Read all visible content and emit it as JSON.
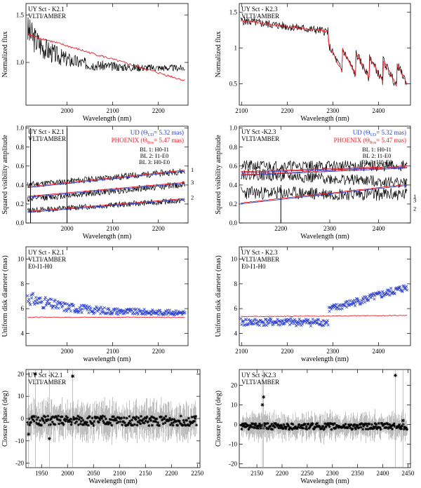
{
  "chart_data": [
    {
      "id": "flux-k21",
      "type": "line",
      "title_lines": [
        "UY Sct - K2.1",
        "VLTI/AMBER"
      ],
      "xlabel": "Wavelength (nm)",
      "ylabel": "Normalized flux",
      "xlim": [
        1910,
        2265
      ],
      "ylim": [
        0.55,
        1.62
      ],
      "xticks": [
        2000,
        2100,
        2200
      ],
      "yticks": [
        1.0,
        1.5
      ],
      "legend": [],
      "series": [
        {
          "name": "Observed",
          "color": "#000000",
          "gen": {
            "kind": "decay",
            "a": 0.94,
            "b": 0.42,
            "tau": 60,
            "noise": 0.09,
            "decay": 90,
            "n": 330,
            "seed": 3
          }
        },
        {
          "name": "Model",
          "color": "#e8202a",
          "gen": {
            "kind": "linear",
            "y0": 1.3,
            "y1": 0.8,
            "noise": 0.012,
            "n": 170,
            "seed": 8
          }
        }
      ]
    },
    {
      "id": "flux-k23",
      "type": "line",
      "title_lines": [
        "UY Sct - K2.3",
        "VLTI/AMBER"
      ],
      "xlabel": "Wavelength (nm)",
      "ylabel": "Normalized flux",
      "xlim": [
        2095,
        2470
      ],
      "ylim": [
        0.2,
        1.62
      ],
      "xticks": [
        2100,
        2200,
        2300,
        2400
      ],
      "yticks": [
        0.5,
        1.0,
        1.5
      ],
      "legend": [],
      "series": [
        {
          "name": "Observed",
          "color": "#000000",
          "gen": {
            "kind": "coband",
            "noise": 0.06,
            "n": 320,
            "seed": 5
          }
        },
        {
          "name": "Model",
          "color": "#e8202a",
          "gen": {
            "kind": "coband",
            "noise": 0.02,
            "n": 220,
            "seed": 9
          }
        }
      ]
    },
    {
      "id": "vis-k21",
      "type": "line",
      "title_lines": [
        "UY Sct - K2.1",
        "VLTI/AMBER"
      ],
      "xlabel": "Wavelength (nm)",
      "ylabel": "Squared visibility amplitude",
      "xlim": [
        1910,
        2265
      ],
      "ylim": [
        0,
        1.02
      ],
      "xticks": [
        2000,
        2100,
        2200
      ],
      "yticks": [
        0.0,
        0.2,
        0.4,
        0.6,
        0.8,
        1.0
      ],
      "legend": [
        {
          "text": "UD (Θ",
          "sub": "UD",
          "tail": "= 5.32 mas)",
          "color": "#2b3fd0"
        },
        {
          "text": "PHOENIX (Θ",
          "sub": "Ros",
          "tail": "= 5.47 mas)",
          "color": "#e8202a"
        }
      ],
      "baselines": [
        "BL 1: H0-I1",
        "BL 2: I1-E0",
        "BL 3: H0-E0"
      ],
      "curve_labels": [
        {
          "text": "1",
          "y": 0.56
        },
        {
          "text": "3",
          "y": 0.43
        },
        {
          "text": "2",
          "y": 0.27
        }
      ],
      "series": [
        {
          "name": "BL1 obs",
          "color": "#000000",
          "gen": {
            "kind": "linear",
            "y0": 0.4,
            "y1": 0.55,
            "noise": 0.035,
            "n": 300,
            "seed": 11
          }
        },
        {
          "name": "BL3 obs",
          "color": "#000000",
          "gen": {
            "kind": "linear",
            "y0": 0.25,
            "y1": 0.41,
            "noise": 0.035,
            "n": 300,
            "seed": 12
          }
        },
        {
          "name": "BL2 obs",
          "color": "#000000",
          "gen": {
            "kind": "linear",
            "y0": 0.13,
            "y1": 0.24,
            "noise": 0.03,
            "n": 300,
            "seed": 13
          }
        },
        {
          "name": "BL1 UD",
          "color": "#2b3fd0",
          "gen": {
            "kind": "linear",
            "y0": 0.37,
            "y1": 0.55,
            "noise": 0,
            "n": 2,
            "seed": 1
          }
        },
        {
          "name": "BL1 PHX",
          "color": "#e8202a",
          "gen": {
            "kind": "linear",
            "y0": 0.38,
            "y1": 0.56,
            "noise": 0,
            "n": 2,
            "seed": 1
          }
        },
        {
          "name": "BL3 UD",
          "color": "#2b3fd0",
          "gen": {
            "kind": "linear",
            "y0": 0.27,
            "y1": 0.42,
            "noise": 0,
            "n": 2,
            "seed": 1
          }
        },
        {
          "name": "BL3 PHX",
          "color": "#e8202a",
          "gen": {
            "kind": "linear",
            "y0": 0.28,
            "y1": 0.43,
            "noise": 0,
            "n": 2,
            "seed": 1
          }
        },
        {
          "name": "BL2 UD",
          "color": "#2b3fd0",
          "gen": {
            "kind": "linear",
            "y0": 0.11,
            "y1": 0.25,
            "noise": 0,
            "n": 2,
            "seed": 1
          }
        },
        {
          "name": "BL2 PHX",
          "color": "#e8202a",
          "gen": {
            "kind": "linear",
            "y0": 0.12,
            "y1": 0.26,
            "noise": 0,
            "n": 2,
            "seed": 1
          }
        }
      ],
      "spikes": [
        {
          "x": 1920,
          "y0": 0.0,
          "y1": 1.0
        },
        {
          "x": 2000,
          "y0": 0.0,
          "y1": 1.0
        }
      ]
    },
    {
      "id": "vis-k23",
      "type": "line",
      "title_lines": [
        "UY Sct -K2.3",
        "VLTI/AMBER"
      ],
      "xlabel": "Wavelength (nm)",
      "ylabel": "Squared visibility amplitude",
      "xlim": [
        2115,
        2465
      ],
      "ylim": [
        0,
        1.02
      ],
      "xticks": [
        2200,
        2300,
        2400
      ],
      "yticks": [
        0.0,
        0.2,
        0.4,
        0.6,
        0.8,
        1.0
      ],
      "legend": [
        {
          "text": "UD (Θ",
          "sub": "UD",
          "tail": "= 5.32 mas)",
          "color": "#2b3fd0"
        },
        {
          "text": "PHOENIX (Θ",
          "sub": "Ros",
          "tail": "= 5.47 mas)",
          "color": "#e8202a"
        }
      ],
      "baselines": [
        "BL 1: H0-I1",
        "BL 2: I1-E0",
        "BL 3: H0-E0"
      ],
      "curve_labels": [
        {
          "text": "1",
          "y": 0.28
        },
        {
          "text": "3",
          "y": 0.24
        },
        {
          "text": "2",
          "y": 0.15
        }
      ],
      "series": [
        {
          "name": "BL1 obs",
          "color": "#000000",
          "gen": {
            "kind": "linear",
            "y0": 0.6,
            "y1": 0.6,
            "noise": 0.06,
            "n": 300,
            "seed": 21
          }
        },
        {
          "name": "BL3 obs",
          "color": "#000000",
          "gen": {
            "kind": "linear",
            "y0": 0.52,
            "y1": 0.42,
            "noise": 0.06,
            "n": 300,
            "seed": 22
          }
        },
        {
          "name": "BL2 obs",
          "color": "#000000",
          "gen": {
            "kind": "linear",
            "y0": 0.32,
            "y1": 0.3,
            "noise": 0.07,
            "n": 300,
            "seed": 23
          }
        },
        {
          "name": "BL1 UD",
          "color": "#2b3fd0",
          "gen": {
            "kind": "linear",
            "y0": 0.53,
            "y1": 0.59,
            "noise": 0,
            "n": 2,
            "seed": 1
          }
        },
        {
          "name": "BL1 PHX",
          "color": "#e8202a",
          "gen": {
            "kind": "linear",
            "y0": 0.54,
            "y1": 0.6,
            "noise": 0.005,
            "n": 120,
            "seed": 24
          }
        },
        {
          "name": "BL3 UD",
          "color": "#2b3fd0",
          "gen": {
            "kind": "linear",
            "y0": 0.5,
            "y1": 0.58,
            "noise": 0,
            "n": 2,
            "seed": 1
          }
        },
        {
          "name": "BL3 PHX",
          "color": "#e8202a",
          "gen": {
            "kind": "linear",
            "y0": 0.51,
            "y1": 0.59,
            "noise": 0.005,
            "n": 120,
            "seed": 25
          }
        },
        {
          "name": "BL2 UD",
          "color": "#2b3fd0",
          "gen": {
            "kind": "linear",
            "y0": 0.2,
            "y1": 0.4,
            "noise": 0,
            "n": 2,
            "seed": 1
          }
        },
        {
          "name": "BL2 PHX",
          "color": "#e8202a",
          "gen": {
            "kind": "linear",
            "y0": 0.21,
            "y1": 0.41,
            "noise": 0.004,
            "n": 120,
            "seed": 26
          }
        }
      ],
      "spikes": [
        {
          "x": 2200,
          "y0": 0.0,
          "y1": 0.4
        }
      ]
    },
    {
      "id": "ud-k21",
      "type": "scatter",
      "title_lines": [
        "UY Sct - K2.1",
        "VLTI/AMBER",
        "E0-I1-H0"
      ],
      "xlabel": "wavelength (nm)",
      "ylabel": "Uniform disk diameter (mas)",
      "xlim": [
        1910,
        2265
      ],
      "ylim": [
        3,
        11
      ],
      "xticks": [
        2000,
        2100,
        2200
      ],
      "yticks": [
        4,
        6,
        8,
        10
      ],
      "legend": [],
      "series": [
        {
          "name": "UD diameter",
          "color": "#2b3fd0",
          "marker": "x",
          "gen": {
            "kind": "decay",
            "a": 5.65,
            "b": 1.3,
            "tau": 90,
            "noise": 0.28,
            "decay": 200,
            "n": 230,
            "seed": 31
          }
        },
        {
          "name": "Model",
          "color": "#e8202a",
          "gen": {
            "kind": "linear",
            "y0": 5.3,
            "y1": 5.3,
            "noise": 0.03,
            "n": 150,
            "seed": 32
          }
        }
      ]
    },
    {
      "id": "ud-k23",
      "type": "scatter",
      "title_lines": [
        "UY Sct - K2.3",
        "VLTI/AMBER",
        "E0-I1-H0"
      ],
      "xlabel": "wavelength (nm)",
      "ylabel": "Uniform disk diameter (mas)",
      "xlim": [
        2095,
        2470
      ],
      "ylim": [
        3,
        11
      ],
      "xticks": [
        2100,
        2200,
        2300,
        2400
      ],
      "yticks": [
        4,
        6,
        8,
        10
      ],
      "legend": [],
      "series": [
        {
          "name": "UD diameter",
          "color": "#2b3fd0",
          "marker": "x",
          "gen": {
            "kind": "step",
            "x_step": 2290,
            "y_lo": 4.9,
            "y_hi0": 5.9,
            "y_hi1": 7.8,
            "noise": 0.3,
            "n": 260,
            "seed": 41
          }
        },
        {
          "name": "Model",
          "color": "#e8202a",
          "gen": {
            "kind": "linear",
            "y0": 5.35,
            "y1": 5.45,
            "noise": 0.03,
            "n": 150,
            "seed": 42
          }
        }
      ]
    },
    {
      "id": "cp-k21",
      "type": "scatter",
      "title_lines": [
        "UY Sct -K2.1",
        "VLTI/AMBER"
      ],
      "xlabel": "Wavelength (nm)",
      "ylabel": "Closure phase (deg)",
      "xlim": [
        1920,
        2255
      ],
      "ylim": [
        -22,
        22
      ],
      "xticks": [
        1950,
        2000,
        2050,
        2100,
        2150,
        2200,
        2250
      ],
      "yticks": [
        -20,
        -10,
        0,
        10,
        20
      ],
      "legend": [],
      "series": [
        {
          "name": "Closure phase",
          "color": "#000000",
          "marker": "*",
          "errbars": true,
          "gen": {
            "kind": "flat",
            "y": -1,
            "noise": 2.2,
            "n": 260,
            "seed": 51,
            "err": 6
          }
        }
      ],
      "outliers": [
        {
          "x": 1938,
          "y": 20
        },
        {
          "x": 2010,
          "y": 19
        },
        {
          "x": 1925,
          "y": -7
        },
        {
          "x": 1965,
          "y": -9
        }
      ]
    },
    {
      "id": "cp-k23",
      "type": "scatter",
      "title_lines": [
        "UY Sct -K2.3",
        "VLTI/AMBER"
      ],
      "xlabel": "Wavelength (nm)",
      "ylabel": "Closure phase (deg)",
      "xlim": [
        2115,
        2455
      ],
      "ylim": [
        -22,
        28
      ],
      "xticks": [
        2150,
        2200,
        2250,
        2300,
        2350,
        2400,
        2450
      ],
      "yticks": [
        -20,
        -10,
        0,
        10,
        20
      ],
      "legend": [],
      "series": [
        {
          "name": "Closure phase",
          "color": "#000000",
          "marker": "*",
          "errbars": true,
          "gen": {
            "kind": "flat",
            "y": -1,
            "noise": 1.6,
            "n": 260,
            "seed": 61,
            "err": 5
          }
        }
      ],
      "outliers": [
        {
          "x": 2163,
          "y": 14
        },
        {
          "x": 2161,
          "y": 10
        },
        {
          "x": 2425,
          "y": 25
        },
        {
          "x": 2440,
          "y": 2
        }
      ]
    }
  ]
}
